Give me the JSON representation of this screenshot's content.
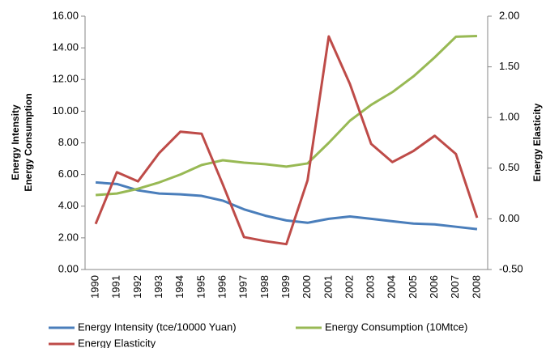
{
  "chart_data": {
    "type": "line",
    "y_label": [
      "Energy Intensity",
      "Energy Consumption"
    ],
    "y2_label": "Energy Elasticity",
    "categories": [
      "1990",
      "1991",
      "1992",
      "1993",
      "1994",
      "1995",
      "1996",
      "1997",
      "1998",
      "1999",
      "2000",
      "2001",
      "2002",
      "2003",
      "2004",
      "2005",
      "2006",
      "2007",
      "2008"
    ],
    "series": [
      {
        "name": "Energy Intensity (tce/10000 Yuan)",
        "color": "#4a7ebb",
        "values": [
          5.5,
          5.4,
          5.0,
          4.8,
          4.75,
          4.65,
          4.35,
          3.8,
          3.4,
          3.1,
          2.95,
          3.2,
          3.35,
          3.2,
          3.05,
          2.9,
          2.85,
          2.7,
          2.55
        ]
      },
      {
        "name": "Energy Consumption (10Mtce)",
        "color": "#98b954",
        "values": [
          4.7,
          4.8,
          5.1,
          5.5,
          6.0,
          6.6,
          6.9,
          6.75,
          6.65,
          6.5,
          6.7,
          8.0,
          9.4,
          10.4,
          11.2,
          12.2,
          13.4,
          14.7,
          14.75
        ]
      },
      {
        "name": "Energy Elasticity",
        "color": "#be4b48",
        "axis": "y2",
        "values": [
          -0.05,
          0.46,
          0.37,
          0.65,
          0.86,
          0.84,
          0.34,
          -0.18,
          -0.22,
          -0.25,
          0.38,
          1.8,
          1.33,
          0.74,
          0.56,
          0.67,
          0.82,
          0.64,
          0.01
        ]
      }
    ],
    "ylim": [
      0,
      16
    ],
    "yticks": [
      {
        "value": 0,
        "label": "0.00"
      },
      {
        "value": 2,
        "label": "2.00"
      },
      {
        "value": 4,
        "label": "4.00"
      },
      {
        "value": 6,
        "label": "6.00"
      },
      {
        "value": 8,
        "label": "8.00"
      },
      {
        "value": 10,
        "label": "10.00"
      },
      {
        "value": 12,
        "label": "12.00"
      },
      {
        "value": 14,
        "label": "14.00"
      },
      {
        "value": 16,
        "label": "16.00"
      }
    ],
    "y2lim": [
      -0.5,
      2.0
    ],
    "y2ticks": [
      {
        "value": -0.5,
        "label": "-0.50"
      },
      {
        "value": 0,
        "label": "0.00"
      },
      {
        "value": 0.5,
        "label": "0.50"
      },
      {
        "value": 1,
        "label": "1.00"
      },
      {
        "value": 1.5,
        "label": "1.50"
      },
      {
        "value": 2,
        "label": "2.00"
      }
    ],
    "grid": false
  }
}
